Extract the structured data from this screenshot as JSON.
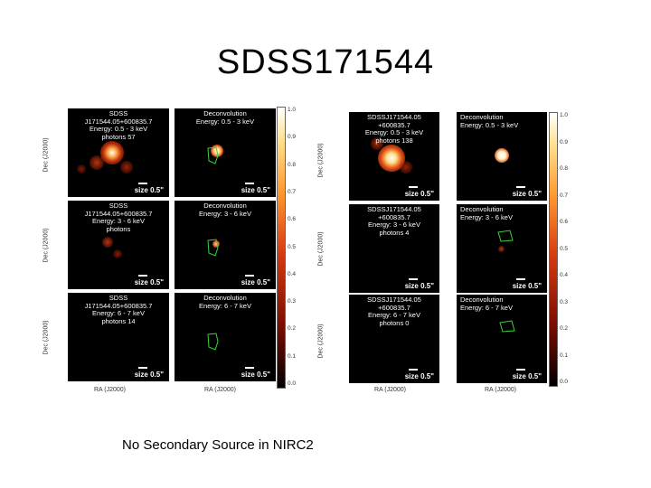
{
  "slide": {
    "title": "SDSS171544",
    "footer": "No Secondary Source in NIRC2"
  },
  "left_figure": {
    "rows": [
      {
        "obs_text": "SDSS\nJ171544.05+600835.7\nEnergy: 0.5 - 3 keV\nphotons 57",
        "decon_text": "Deconvolution\nEnergy: 0.5 - 3 keV"
      },
      {
        "obs_text": "SDSS\nJ171544.05+600835.7\nEnergy: 3 - 6 keV\nphotons",
        "decon_text": "Deconvolution\nEnergy: 3 - 6 keV"
      },
      {
        "obs_text": "SDSS\nJ171544.05+600835.7\nEnergy: 6 - 7 keV\nphotons 14",
        "decon_text": "Deconvolution\nEnergy: 6 - 7 keV"
      }
    ]
  },
  "right_figure": {
    "rows": [
      {
        "obs_text": "SDSSJ171544.05\n+600835.7\nEnergy: 0.5 - 3 keV\nphotons 138",
        "decon_text": "Deconvolution\nEnergy: 0.5 - 3 keV"
      },
      {
        "obs_text": "SDSSJ171544.05\n+600835.7\nEnergy: 3 - 6 keV\nphotons 4",
        "decon_text": "Deconvolution\nEnergy: 3 - 6 keV"
      },
      {
        "obs_text": "SDSSJ171544.05\n+600835.7\nEnergy: 6 - 7 keV\nphotons 0",
        "decon_text": "Deconvolution\nEnergy: 6 - 7 keV"
      }
    ]
  },
  "common": {
    "size_label": "size 0.5\"",
    "ylabel": "Dec (J2000)",
    "xlabel": "RA (J2000)",
    "colorbar_ticks": [
      "1.0",
      "0.9",
      "0.8",
      "0.7",
      "0.6",
      "0.5",
      "0.4",
      "0.3",
      "0.2",
      "0.1",
      "0.0"
    ],
    "colormap": [
      "#ffffff",
      "#ffe08a",
      "#ff9a30",
      "#d83a10",
      "#7a0c00",
      "#000000"
    ],
    "contour_color": "#3cd43c"
  }
}
